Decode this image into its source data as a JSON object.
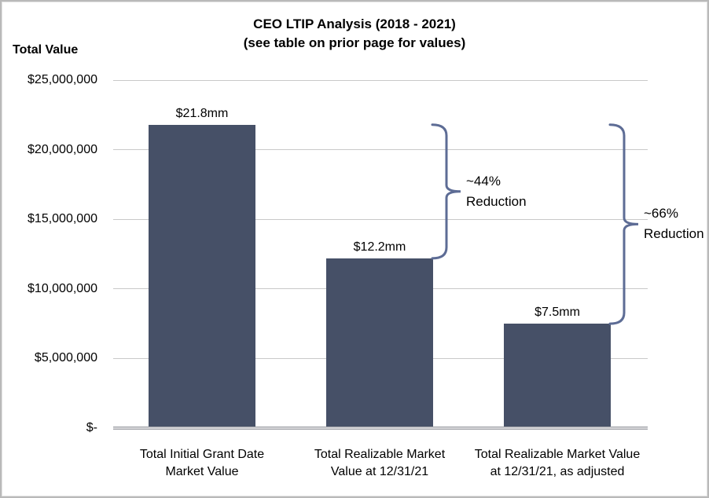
{
  "chart_data": {
    "type": "bar",
    "title": "CEO LTIP Analysis (2018 - 2021)",
    "subtitle": "(see table on prior page for values)",
    "ylabel": "Total Value",
    "categories": [
      "Total Initial Grant Date\nMarket Value",
      "Total Realizable Market\nValue at 12/31/21",
      "Total Realizable Market Value\nat 12/31/21, as adjusted"
    ],
    "values": [
      21800000,
      12200000,
      7500000
    ],
    "value_labels": [
      "$21.8mm",
      "$12.2mm",
      "$7.5mm"
    ],
    "ylim": [
      0,
      25000000
    ],
    "yticks": [
      {
        "value": 25000000,
        "label": "$25,000,000"
      },
      {
        "value": 20000000,
        "label": "$20,000,000"
      },
      {
        "value": 15000000,
        "label": "$15,000,000"
      },
      {
        "value": 10000000,
        "label": "$10,000,000"
      },
      {
        "value": 5000000,
        "label": "$5,000,000"
      },
      {
        "value": 0,
        "label": "$-"
      }
    ],
    "grid": true,
    "legend": "none",
    "annotations": [
      {
        "label": "~44%\nReduction",
        "from_bar": 0,
        "to_bar": 1
      },
      {
        "label": "~66%\nReduction",
        "from_bar": 0,
        "to_bar": 2
      }
    ],
    "colors": {
      "bar": "#465067",
      "brace": "#5d6c95",
      "gridline": "#c9c9c9",
      "axis": "#9fa0a6"
    }
  }
}
